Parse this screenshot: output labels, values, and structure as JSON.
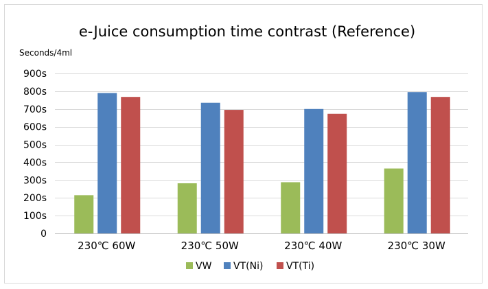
{
  "chart_data": {
    "type": "bar",
    "title": "e-Juice consumption time contrast (Reference)",
    "ylabel": "Seconds/4ml",
    "xlabel": "",
    "categories": [
      "230℃  60W",
      "230℃  50W",
      "230℃  40W",
      "230℃  30W"
    ],
    "series": [
      {
        "name": "VW",
        "color": "#9bbb59",
        "values": [
          215,
          282,
          288,
          365
        ]
      },
      {
        "name": "VT(Ni)",
        "color": "#4f81bd",
        "values": [
          790,
          735,
          700,
          795
        ]
      },
      {
        "name": "VT(Ti)",
        "color": "#c0504d",
        "values": [
          768,
          695,
          673,
          768
        ]
      }
    ],
    "ylim": [
      0,
      900
    ],
    "yticks": [
      0,
      100,
      200,
      300,
      400,
      500,
      600,
      700,
      800,
      900
    ],
    "ytick_labels": [
      "0",
      "100s",
      "200s",
      "300s",
      "400s",
      "500s",
      "600s",
      "700s",
      "800s",
      "900s"
    ],
    "grid": true,
    "legend_position": "bottom"
  }
}
